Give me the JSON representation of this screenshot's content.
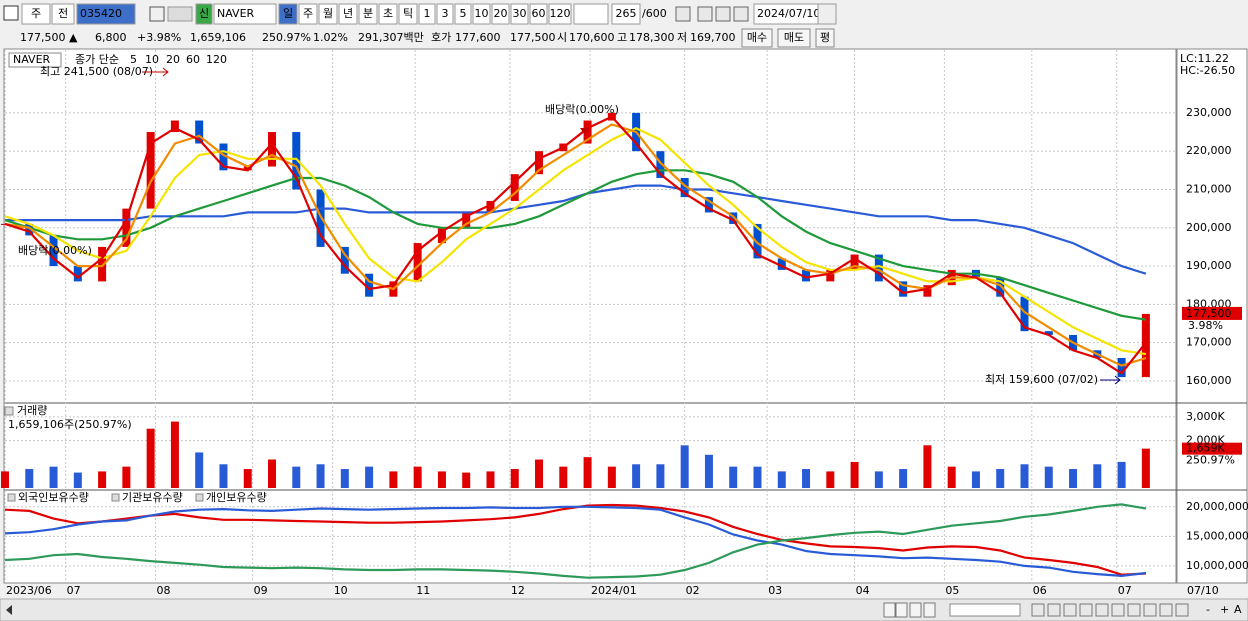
{
  "toolbar": {
    "market": "주",
    "prev": "전",
    "code": "035420",
    "new_badge": "신",
    "name": "NAVER",
    "periods": [
      "일",
      "주",
      "월",
      "년",
      "분",
      "초",
      "틱"
    ],
    "intervals": [
      "1",
      "3",
      "5",
      "10",
      "20",
      "30",
      "60",
      "120"
    ],
    "count": "265",
    "max": "/600",
    "date": "2024/07/10"
  },
  "quote": {
    "price": "177,500 ▲",
    "change": "6,800",
    "pct": "+3.98%",
    "volume": "1,659,106",
    "vol_ratio": "250.97%",
    "turnover": "1.02%",
    "amount": "291,307백만",
    "ask_label": "호가",
    "ask": "177,600",
    "bid": "177,500",
    "open_label": "시",
    "open": "170,600",
    "high_label": "고",
    "high": "178,300",
    "low_label": "저",
    "low": "169,700",
    "buy": "매수",
    "sell": "매도",
    "avg": "평"
  },
  "scroll": {
    "zoom": [
      "-",
      "+",
      "A"
    ]
  },
  "chart_data": [
    {
      "type": "candlestick",
      "ma_label": "종가 단순",
      "ylim": [
        154500,
        245900
      ],
      "yticks": [
        {
          "value": 160000,
          "label": "160,000"
        },
        {
          "value": 170000,
          "label": "170,000"
        },
        {
          "value": 180000,
          "label": "180,000"
        },
        {
          "value": 190000,
          "label": "190,000"
        },
        {
          "value": 200000,
          "label": "200,000"
        },
        {
          "value": 210000,
          "label": "210,000"
        },
        {
          "value": 220000,
          "label": "220,000"
        },
        {
          "value": 230000,
          "label": "230,000"
        }
      ],
      "grid": true,
      "up_color": "#e00000",
      "down_color": "#0050d0",
      "annotations": [
        "최고 241,500 (08/07)",
        "배당락(0.00%)",
        "배당락(0.00%)",
        "최저 159,600 (07/02)"
      ],
      "lc": "LC:11.22",
      "hc": "HC:-26.50",
      "last_price": "177,500",
      "last_change": "3.98%",
      "series": [
        {
          "name": "NAVER",
          "values": [
            201000,
            198000,
            190000,
            186000,
            195000,
            205000,
            225000,
            228000,
            222000,
            215000,
            216000,
            225000,
            210000,
            195000,
            188000,
            182000,
            186000,
            196000,
            200000,
            204000,
            207000,
            214000,
            220000,
            222000,
            228000,
            230000,
            220000,
            213000,
            208000,
            204000,
            201000,
            192000,
            189000,
            186000,
            189000,
            193000,
            186000,
            182000,
            185000,
            189000,
            187000,
            182000,
            173000,
            172000,
            168000,
            166000,
            161000,
            177500
          ]
        },
        {
          "name": "5",
          "color": "#e00000",
          "values": [
            201000,
            199000,
            192000,
            187000,
            192000,
            202000,
            222000,
            226000,
            223000,
            216000,
            215000,
            222000,
            213000,
            198000,
            190000,
            184000,
            185000,
            194000,
            199000,
            203000,
            206000,
            212000,
            218000,
            221000,
            226000,
            229000,
            222000,
            214000,
            209000,
            205000,
            202000,
            193000,
            190000,
            187000,
            188000,
            192000,
            188000,
            183000,
            184000,
            188000,
            187000,
            183000,
            174000,
            172000,
            168000,
            166000,
            162000,
            170000
          ]
        },
        {
          "name": "10",
          "color": "#f08c00",
          "values": [
            201000,
            200000,
            195000,
            190000,
            190000,
            197000,
            212000,
            222000,
            224000,
            219000,
            216000,
            219000,
            216000,
            203000,
            193000,
            186000,
            184000,
            190000,
            196000,
            201000,
            204000,
            209000,
            215000,
            219000,
            223000,
            227000,
            225000,
            217000,
            211000,
            207000,
            203000,
            196000,
            192000,
            189000,
            188000,
            190000,
            189000,
            185000,
            184000,
            187000,
            187000,
            185000,
            178000,
            174000,
            170000,
            167000,
            164000,
            166000
          ]
        },
        {
          "name": "20",
          "color": "#f5e400",
          "values": [
            203000,
            201000,
            198000,
            194000,
            192000,
            194000,
            203000,
            213000,
            219000,
            220000,
            218000,
            218000,
            218000,
            211000,
            201000,
            192000,
            187000,
            186000,
            191000,
            197000,
            201000,
            205000,
            210000,
            215000,
            219000,
            223000,
            226000,
            223000,
            217000,
            211000,
            206000,
            200000,
            195000,
            191000,
            189000,
            189000,
            190000,
            188000,
            186000,
            186000,
            187000,
            186000,
            182000,
            178000,
            174000,
            171000,
            168000,
            167000
          ]
        },
        {
          "name": "60",
          "color": "#1f9a3a",
          "values": [
            202000,
            200000,
            198000,
            197000,
            197000,
            198000,
            200000,
            203000,
            205000,
            207000,
            209000,
            211000,
            213000,
            213000,
            211000,
            208000,
            204000,
            201000,
            200000,
            200000,
            200000,
            201000,
            203000,
            206000,
            209000,
            212000,
            214000,
            215000,
            215000,
            214000,
            212000,
            208000,
            203000,
            199000,
            196000,
            194000,
            192000,
            190000,
            189000,
            188000,
            188000,
            187000,
            185000,
            183000,
            181000,
            179000,
            177000,
            176000
          ]
        },
        {
          "name": "120",
          "color": "#2a5bd7",
          "values": [
            202000,
            202000,
            202000,
            202000,
            202000,
            202000,
            203000,
            203000,
            203000,
            203000,
            204000,
            204000,
            204000,
            205000,
            205000,
            204000,
            204000,
            204000,
            204000,
            204000,
            204000,
            205000,
            206000,
            207000,
            209000,
            210000,
            211000,
            211000,
            210000,
            210000,
            209000,
            208000,
            207000,
            206000,
            205000,
            204000,
            203000,
            203000,
            203000,
            202000,
            202000,
            201000,
            200000,
            198000,
            196000,
            193000,
            190000,
            188000
          ]
        }
      ]
    },
    {
      "type": "bar",
      "title": "거래량",
      "subtitle": "1,659,106주(250.97%)",
      "ylim": [
        0,
        3500000
      ],
      "yticks": [
        {
          "value": 2000000,
          "label": "2,000K"
        },
        {
          "value": 3000000,
          "label": "3,000K"
        }
      ],
      "grid": true,
      "up_color": "#e00000",
      "down_color": "#2a5bd7",
      "last_label": "1,659K",
      "last_ratio": "250.97%",
      "values": [
        700000,
        800000,
        900000,
        650000,
        700000,
        900000,
        2500000,
        2800000,
        1500000,
        1000000,
        800000,
        1200000,
        900000,
        1000000,
        800000,
        900000,
        700000,
        900000,
        700000,
        650000,
        700000,
        800000,
        1200000,
        900000,
        1300000,
        900000,
        1000000,
        1000000,
        1800000,
        1400000,
        900000,
        900000,
        700000,
        800000,
        700000,
        1100000,
        700000,
        800000,
        1800000,
        900000,
        700000,
        800000,
        1000000,
        900000,
        800000,
        1000000,
        1100000,
        1659106
      ]
    },
    {
      "type": "line",
      "ylim": [
        7100000,
        22500000
      ],
      "yticks": [
        {
          "value": 10000000,
          "label": "10,000,000"
        },
        {
          "value": 15000000,
          "label": "15,000,000"
        },
        {
          "value": 20000000,
          "label": "20,000,000"
        }
      ],
      "grid": true,
      "xlim": [
        0,
        48.2
      ],
      "xticks": [
        {
          "value": 0,
          "label": "2023/06"
        },
        {
          "value": 2.5,
          "label": "07"
        },
        {
          "value": 6.2,
          "label": "08"
        },
        {
          "value": 10.2,
          "label": "09"
        },
        {
          "value": 13.5,
          "label": "10"
        },
        {
          "value": 16.9,
          "label": "11"
        },
        {
          "value": 20.8,
          "label": "12"
        },
        {
          "value": 24.1,
          "label": "2024/01"
        },
        {
          "value": 28,
          "label": "02"
        },
        {
          "value": 31.4,
          "label": "03"
        },
        {
          "value": 35,
          "label": "04"
        },
        {
          "value": 38.7,
          "label": "05"
        },
        {
          "value": 42.3,
          "label": "06"
        },
        {
          "value": 45.8,
          "label": "07"
        }
      ],
      "x_end_label": "07/10",
      "series": [
        {
          "name": "외국인보유수량",
          "color": "#e00000",
          "values": [
            19500000,
            19300000,
            18000000,
            17200000,
            17500000,
            18000000,
            18500000,
            18800000,
            18200000,
            17800000,
            17800000,
            17700000,
            17600000,
            17500000,
            17400000,
            17300000,
            17300000,
            17400000,
            17500000,
            17700000,
            17900000,
            18200000,
            18800000,
            19600000,
            20200000,
            20300000,
            20200000,
            19800000,
            19200000,
            18200000,
            16600000,
            15400000,
            14400000,
            13800000,
            13300000,
            13200000,
            13000000,
            12600000,
            13100000,
            13300000,
            13200000,
            12600000,
            11400000,
            11000000,
            10500000,
            9800000,
            8500000,
            8700000
          ]
        },
        {
          "name": "기관보유수량",
          "color": "#2a5bd7",
          "values": [
            15500000,
            15700000,
            16200000,
            17000000,
            17500000,
            17700000,
            18500000,
            19200000,
            19500000,
            19600000,
            19400000,
            19300000,
            19500000,
            19700000,
            19600000,
            19500000,
            19600000,
            19700000,
            19800000,
            19800000,
            19900000,
            19800000,
            19800000,
            20000000,
            20000000,
            19900000,
            19800000,
            19500000,
            18200000,
            17000000,
            15300000,
            14300000,
            13600000,
            12500000,
            12000000,
            11800000,
            11600000,
            11300000,
            11400000,
            11200000,
            11000000,
            10700000,
            10000000,
            9700000,
            9000000,
            8600000,
            8300000,
            8800000
          ]
        },
        {
          "name": "개인보유수량",
          "color": "#2e9a5a",
          "values": [
            11000000,
            11200000,
            11800000,
            12000000,
            11500000,
            11200000,
            10800000,
            10500000,
            10200000,
            9800000,
            9700000,
            9600000,
            9700000,
            9600000,
            9400000,
            9300000,
            9300000,
            9400000,
            9400000,
            9300000,
            9200000,
            9000000,
            8700000,
            8300000,
            8000000,
            8100000,
            8200000,
            8500000,
            9300000,
            10500000,
            12300000,
            13600000,
            14300000,
            14700000,
            15200000,
            15600000,
            15800000,
            15400000,
            16100000,
            16800000,
            17200000,
            17600000,
            18300000,
            18700000,
            19300000,
            20000000,
            20400000,
            19700000
          ]
        }
      ]
    }
  ]
}
